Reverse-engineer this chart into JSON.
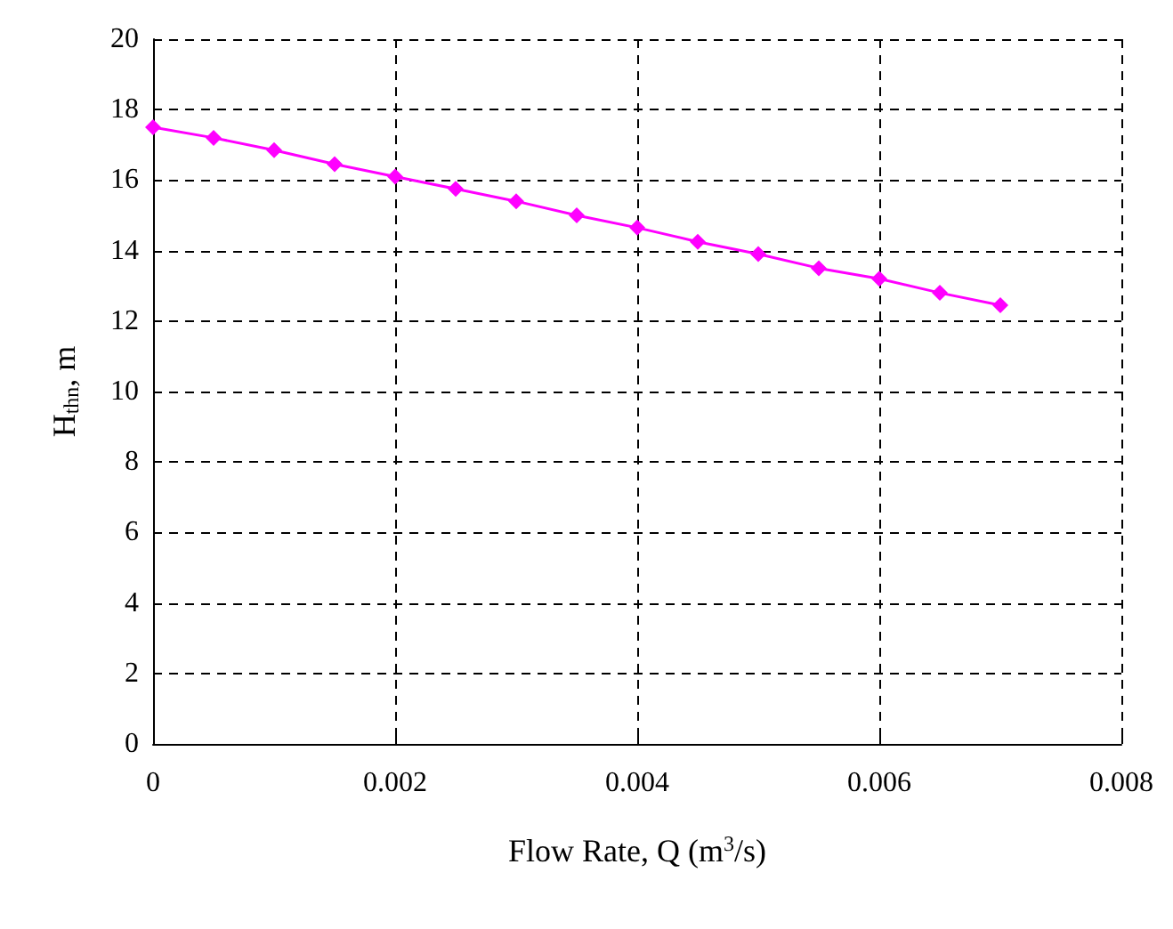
{
  "chart_data": {
    "type": "line",
    "xlabel": "Flow Rate, Q (m$^{3}$/s)",
    "ylabel": "H$_{thn}$, m",
    "x": [
      0,
      0.0005,
      0.001,
      0.0015,
      0.002,
      0.0025,
      0.003,
      0.0035,
      0.004,
      0.0045,
      0.005,
      0.0055,
      0.006,
      0.0065,
      0.007
    ],
    "series": [
      {
        "color": "#ff00ff",
        "values": [
          17.5,
          17.2,
          16.85,
          16.45,
          16.1,
          15.75,
          15.4,
          15.0,
          14.65,
          14.25,
          13.9,
          13.5,
          13.2,
          12.8,
          12.45
        ]
      }
    ],
    "xlim": [
      0,
      0.008
    ],
    "xticks": [
      0,
      0.002,
      0.004,
      0.006,
      0.008
    ],
    "ylim": [
      0,
      20
    ],
    "yticks": [
      0,
      2,
      4,
      6,
      8,
      10,
      12,
      14,
      16,
      18,
      20
    ],
    "grid": true,
    "marker": "diamond",
    "line_style": "solid"
  }
}
